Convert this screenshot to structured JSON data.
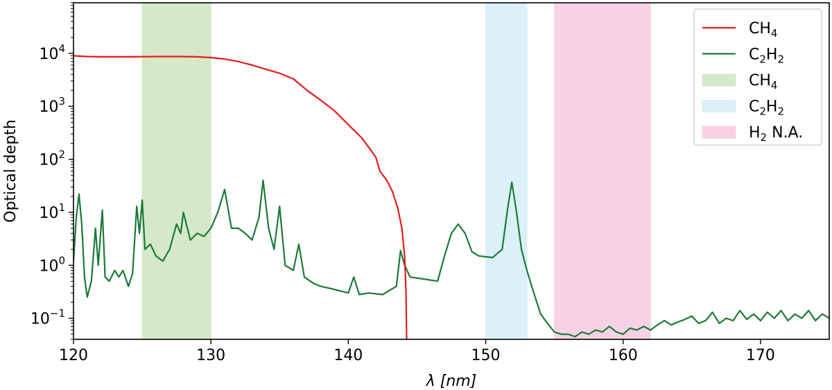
{
  "chart_data": {
    "type": "line",
    "title": "",
    "xlabel": "λ [nm]",
    "ylabel": "Optical depth",
    "xlim": [
      120,
      175
    ],
    "ylim": [
      0.04,
      90000
    ],
    "yscale": "log",
    "grid": false,
    "legend_position": "top-right",
    "x_ticks": [
      120,
      130,
      140,
      150,
      160,
      170
    ],
    "y_ticks": [
      {
        "value": 0.1,
        "base": "10",
        "exp": "−1"
      },
      {
        "value": 1,
        "base": "10",
        "exp": "0"
      },
      {
        "value": 10,
        "base": "10",
        "exp": "1"
      },
      {
        "value": 100,
        "base": "10",
        "exp": "2"
      },
      {
        "value": 1000,
        "base": "10",
        "exp": "3"
      },
      {
        "value": 10000,
        "base": "10",
        "exp": "4"
      }
    ],
    "bands": [
      {
        "name": "CH4",
        "label_parts": [
          "CH",
          "4",
          ""
        ],
        "x0": 125,
        "x1": 130,
        "color": "#d5e9c9"
      },
      {
        "name": "C2H2",
        "label_parts": [
          "C",
          "2",
          "H",
          "2"
        ],
        "x0": 150,
        "x1": 153,
        "color": "#dcf0f9"
      },
      {
        "name": "H2 N.A.",
        "label_parts": [
          "H",
          "2",
          " N.A."
        ],
        "x0": 155,
        "x1": 162,
        "color": "#f7d2e5"
      }
    ],
    "series": [
      {
        "name": "CH4",
        "label_parts": [
          "CH",
          "4",
          ""
        ],
        "color": "#e8191c",
        "points": [
          [
            120,
            9000
          ],
          [
            121,
            8700
          ],
          [
            122,
            8600
          ],
          [
            124,
            8600
          ],
          [
            126,
            8700
          ],
          [
            128,
            8700
          ],
          [
            129,
            8600
          ],
          [
            130,
            8300
          ],
          [
            131,
            7800
          ],
          [
            132,
            7000
          ],
          [
            133,
            6000
          ],
          [
            134,
            5000
          ],
          [
            135,
            4200
          ],
          [
            136,
            3300
          ],
          [
            137,
            2000
          ],
          [
            138,
            1300
          ],
          [
            139,
            820
          ],
          [
            140,
            450
          ],
          [
            141,
            250
          ],
          [
            142,
            110
          ],
          [
            142.3,
            60
          ],
          [
            142.8,
            40
          ],
          [
            143.2,
            25
          ],
          [
            143.6,
            12
          ],
          [
            143.9,
            5
          ],
          [
            144.1,
            1.5
          ],
          [
            144.2,
            0.3
          ],
          [
            144.25,
            0.03
          ]
        ]
      },
      {
        "name": "C2H2",
        "label_parts": [
          "C",
          "2",
          "H",
          "2"
        ],
        "color": "#1a7a36",
        "points": [
          [
            120,
            1.2
          ],
          [
            120.2,
            8
          ],
          [
            120.4,
            22
          ],
          [
            120.6,
            6
          ],
          [
            120.8,
            0.6
          ],
          [
            121,
            0.25
          ],
          [
            121.3,
            0.5
          ],
          [
            121.6,
            5
          ],
          [
            121.8,
            1
          ],
          [
            122.1,
            11
          ],
          [
            122.3,
            0.6
          ],
          [
            122.6,
            0.5
          ],
          [
            123,
            0.8
          ],
          [
            123.3,
            0.6
          ],
          [
            123.6,
            0.8
          ],
          [
            124,
            0.4
          ],
          [
            124.3,
            0.7
          ],
          [
            124.6,
            13
          ],
          [
            124.8,
            4
          ],
          [
            125,
            17
          ],
          [
            125.2,
            2
          ],
          [
            125.6,
            2.5
          ],
          [
            126,
            1.5
          ],
          [
            126.5,
            1.2
          ],
          [
            127,
            2
          ],
          [
            127.5,
            6
          ],
          [
            127.8,
            4
          ],
          [
            128,
            10
          ],
          [
            128.5,
            3
          ],
          [
            129,
            4
          ],
          [
            129.5,
            3.5
          ],
          [
            130,
            5
          ],
          [
            130.5,
            10
          ],
          [
            131,
            27
          ],
          [
            131.5,
            5
          ],
          [
            132,
            5
          ],
          [
            132.5,
            4
          ],
          [
            133,
            3
          ],
          [
            133.5,
            8
          ],
          [
            133.8,
            40
          ],
          [
            134.2,
            5
          ],
          [
            134.6,
            2
          ],
          [
            135,
            13
          ],
          [
            135.4,
            1
          ],
          [
            136,
            0.8
          ],
          [
            136.4,
            2.5
          ],
          [
            136.8,
            0.6
          ],
          [
            137.5,
            0.45
          ],
          [
            138,
            0.4
          ],
          [
            139,
            0.35
          ],
          [
            140,
            0.3
          ],
          [
            140.4,
            0.6
          ],
          [
            140.8,
            0.28
          ],
          [
            141.5,
            0.3
          ],
          [
            142.5,
            0.28
          ],
          [
            143.5,
            0.4
          ],
          [
            143.8,
            1.9
          ],
          [
            144.1,
            1
          ],
          [
            144.5,
            0.6
          ],
          [
            145.5,
            0.55
          ],
          [
            146.5,
            0.5
          ],
          [
            147,
            1.5
          ],
          [
            147.5,
            4
          ],
          [
            148,
            6
          ],
          [
            148.5,
            4
          ],
          [
            149,
            1.8
          ],
          [
            149.5,
            1.5
          ],
          [
            150.5,
            1.4
          ],
          [
            151.2,
            2
          ],
          [
            151.6,
            12
          ],
          [
            151.9,
            37
          ],
          [
            152.2,
            12
          ],
          [
            152.6,
            2
          ],
          [
            153,
            0.8
          ],
          [
            153.5,
            0.3
          ],
          [
            154,
            0.12
          ],
          [
            154.5,
            0.08
          ],
          [
            155,
            0.055
          ],
          [
            155.5,
            0.05
          ],
          [
            156,
            0.05
          ],
          [
            156.5,
            0.045
          ],
          [
            157,
            0.055
          ],
          [
            157.5,
            0.05
          ],
          [
            158,
            0.06
          ],
          [
            158.5,
            0.055
          ],
          [
            159,
            0.07
          ],
          [
            159.5,
            0.055
          ],
          [
            160,
            0.05
          ],
          [
            160.5,
            0.065
          ],
          [
            161,
            0.06
          ],
          [
            161.5,
            0.07
          ],
          [
            162,
            0.06
          ],
          [
            162.5,
            0.075
          ],
          [
            163,
            0.09
          ],
          [
            163.5,
            0.075
          ],
          [
            164,
            0.085
          ],
          [
            164.5,
            0.095
          ],
          [
            165,
            0.11
          ],
          [
            165.5,
            0.08
          ],
          [
            166,
            0.09
          ],
          [
            166.5,
            0.13
          ],
          [
            167,
            0.08
          ],
          [
            167.5,
            0.1
          ],
          [
            168,
            0.09
          ],
          [
            168.5,
            0.14
          ],
          [
            169,
            0.095
          ],
          [
            169.5,
            0.12
          ],
          [
            170,
            0.09
          ],
          [
            170.5,
            0.13
          ],
          [
            171,
            0.1
          ],
          [
            171.5,
            0.14
          ],
          [
            172,
            0.09
          ],
          [
            172.5,
            0.12
          ],
          [
            173,
            0.1
          ],
          [
            173.5,
            0.14
          ],
          [
            174,
            0.09
          ],
          [
            174.5,
            0.12
          ],
          [
            175,
            0.1
          ]
        ]
      }
    ]
  }
}
